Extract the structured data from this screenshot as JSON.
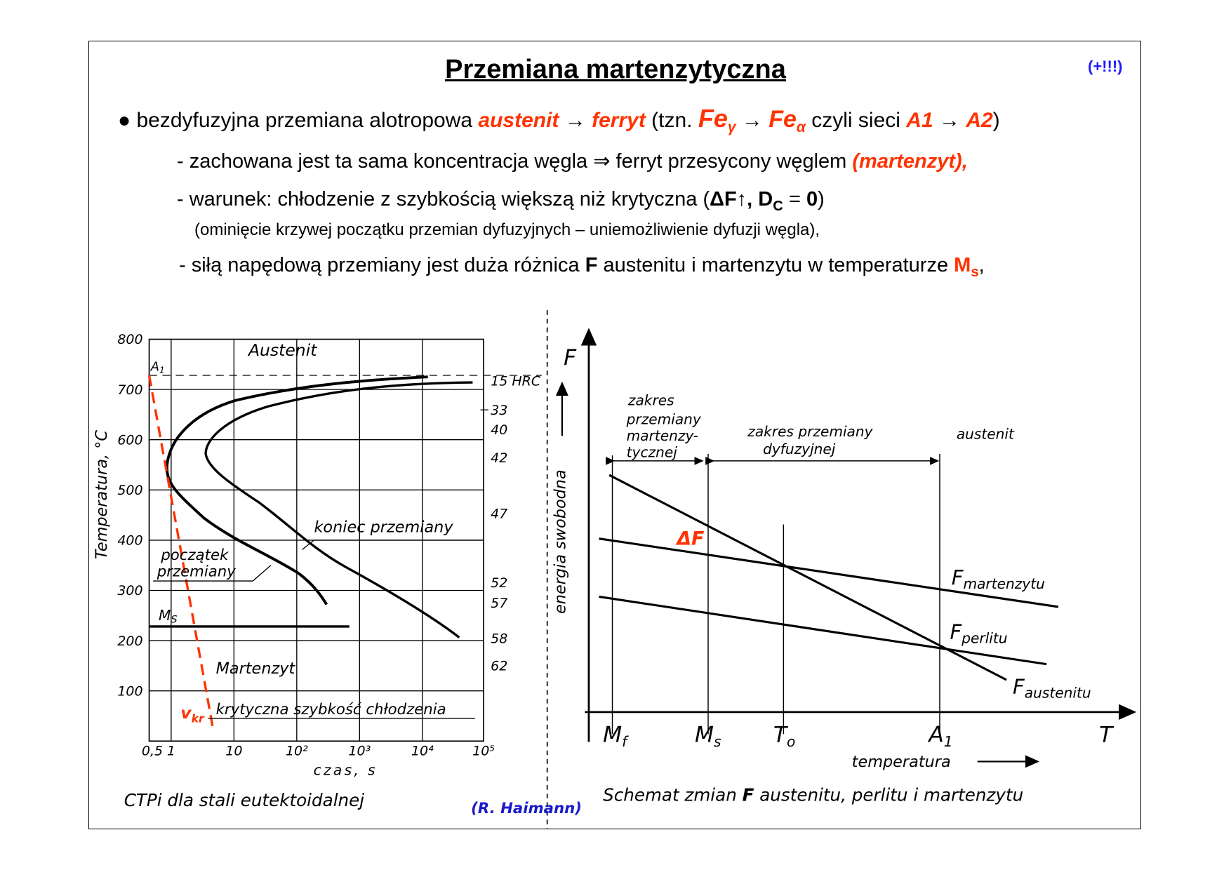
{
  "title": "Przemiana martenzytyczna",
  "note": "(+!!!)",
  "bullets": {
    "b1": {
      "bullet": "●",
      "pre": " bezdyfuzyjna przemiana alotropowa ",
      "austenit": "austenit",
      "arrow": " → ",
      "ferryt": "ferryt",
      "mid": "  (tzn. ",
      "fe": "Fe",
      "gamma": "γ",
      "alpha": "α",
      "mid2": " czyli sieci ",
      "a1": "A1",
      "a2": "A2",
      "close": ")"
    },
    "b2": {
      "pre": "- zachowana jest ta sama koncentracja węgla ⇒ ferryt przesycony węglem ",
      "martenzyt": "(martenzyt),"
    },
    "b3": {
      "pre": "- warunek: chłodzenie z szybkością większą niż krytyczna (",
      "df": "ΔF↑, D",
      "c": "C",
      "eq": " = ",
      "zero": "0",
      "close": ")"
    },
    "b4": {
      "text": "(ominięcie krzywej początku przemian dyfuzyjnych – uniemożliwienie dyfuzji węgla),"
    },
    "b5": {
      "pre": "- siłą napędową przemiany jest duża różnica ",
      "F": "F",
      "post": " austenitu i martenzytu w temperaturze ",
      "M": "M",
      "s": "s",
      "comma": ","
    }
  },
  "left_chart": {
    "ylabel": "Temperatura, °C",
    "xlabel": "czas,  s",
    "yticks": [
      "800",
      "700",
      "600",
      "500",
      "400",
      "300",
      "200",
      "100"
    ],
    "xticks": [
      "0,5",
      "1",
      "10",
      "10²",
      "10³",
      "10⁴",
      "10⁵"
    ],
    "hrc": [
      "15 HRC",
      "33",
      "40",
      "42",
      "47",
      "52",
      "57",
      "58",
      "62"
    ],
    "labels": {
      "austenit": "Austenit",
      "a1": "A",
      "a1sub": "1",
      "koniec": "koniec przemiany",
      "poczatek1": "początek",
      "poczatek2": "przemiany",
      "ms": "M",
      "mssub": "S",
      "martenzyt": "Martenzyt",
      "kryt": "krytyczna szybkość chłodzenia",
      "vkr": "v",
      "vkrsub": "kr"
    },
    "caption": "CTPi dla stali eutektoidalnej",
    "source": "(R. Haimann)",
    "red": "#ff3300"
  },
  "right_chart": {
    "yaxis": "F",
    "ylabel": "energia swobodna",
    "xaxis": "T",
    "xlabel": "temperatura",
    "xticks": [
      {
        "m": "M",
        "s": "f"
      },
      {
        "m": "M",
        "s": "s"
      },
      {
        "m": "T",
        "s": "o"
      },
      {
        "m": "A",
        "s": "1"
      }
    ],
    "zakres_mart": [
      "zakres",
      "przemiany",
      "martenzy-",
      "tycznej"
    ],
    "zakres_dyf": [
      "zakres przemiany",
      "dyfuzyjnej"
    ],
    "austenit": "austenit",
    "deltaF": "ΔF",
    "series": [
      {
        "m": "F",
        "s": "martenzytu"
      },
      {
        "m": "F",
        "s": "perlitu"
      },
      {
        "m": "F",
        "s": "austenitu"
      }
    ],
    "caption_pre": "Schemat zmian ",
    "caption_F": "F",
    "caption_post": " austenitu, perlitu i martenzytu"
  }
}
